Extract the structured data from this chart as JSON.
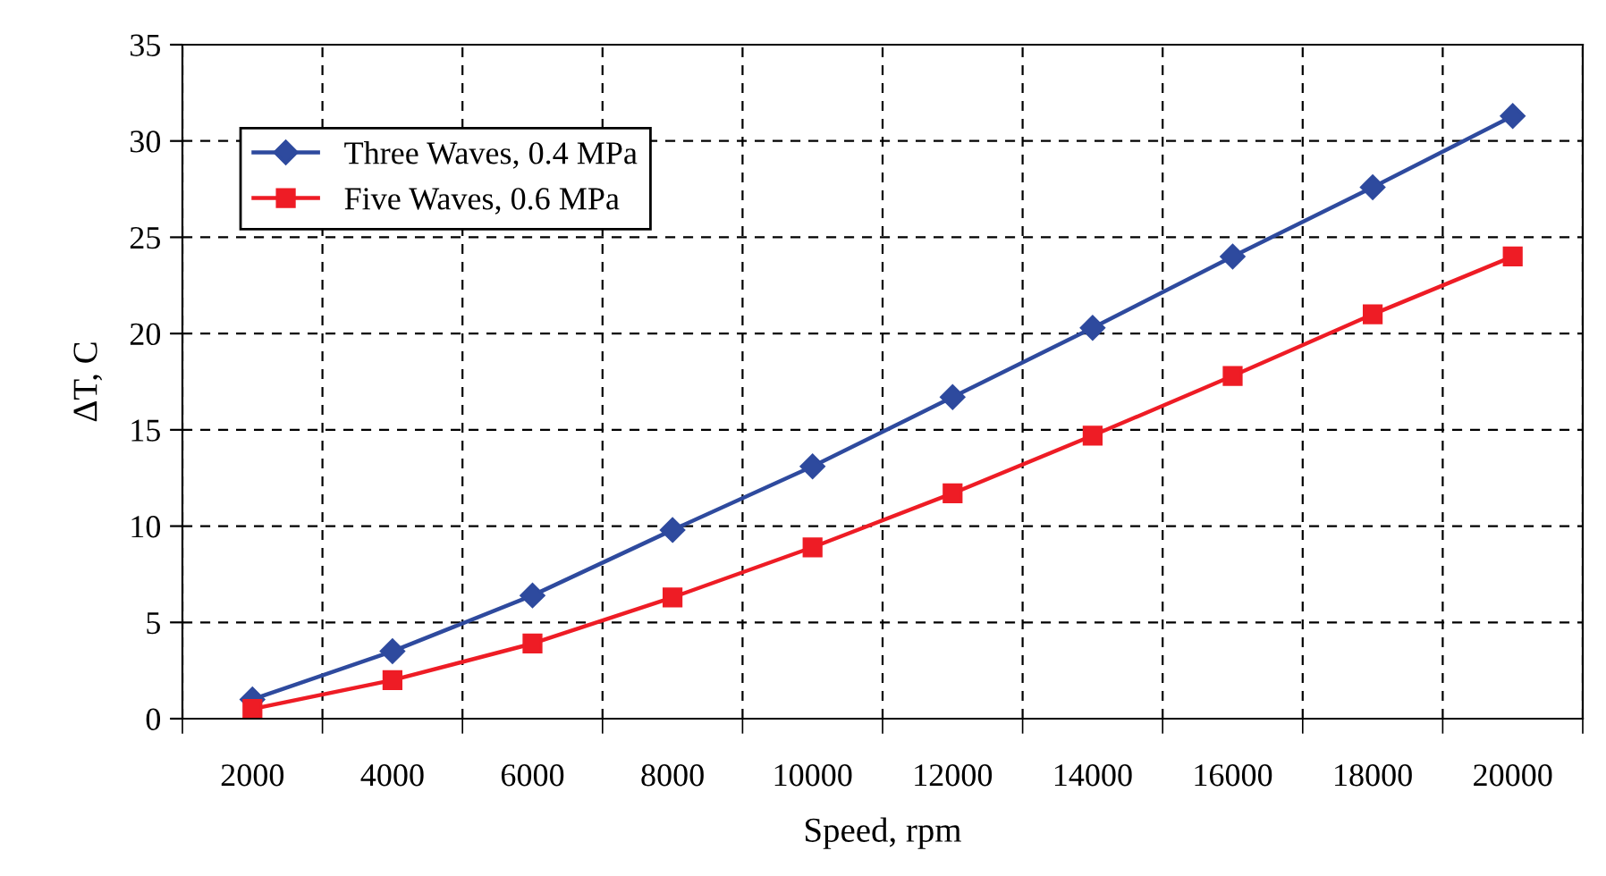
{
  "chart_data": {
    "type": "line",
    "xlabel": "Speed, rpm",
    "ylabel": "ΔT, C",
    "categories": [
      "2000",
      "4000",
      "6000",
      "8000",
      "10000",
      "12000",
      "14000",
      "16000",
      "18000",
      "20000"
    ],
    "series": [
      {
        "name": "Three Waves, 0.4 MPa",
        "color": "#2e4a9e",
        "marker": "diamond",
        "values": [
          1.0,
          3.5,
          6.4,
          9.8,
          13.1,
          16.7,
          20.3,
          24.0,
          27.6,
          31.3
        ]
      },
      {
        "name": "Five Waves, 0.6 MPa",
        "color": "#ee1c25",
        "marker": "square",
        "values": [
          0.5,
          2.0,
          3.9,
          6.3,
          8.9,
          11.7,
          14.7,
          17.8,
          21.0,
          24.0
        ]
      }
    ],
    "ylim": [
      0,
      35
    ],
    "yticks": [
      0,
      5,
      10,
      15,
      20,
      25,
      30,
      35
    ],
    "grid": true,
    "legend": "top left",
    "line_style": "solid"
  }
}
